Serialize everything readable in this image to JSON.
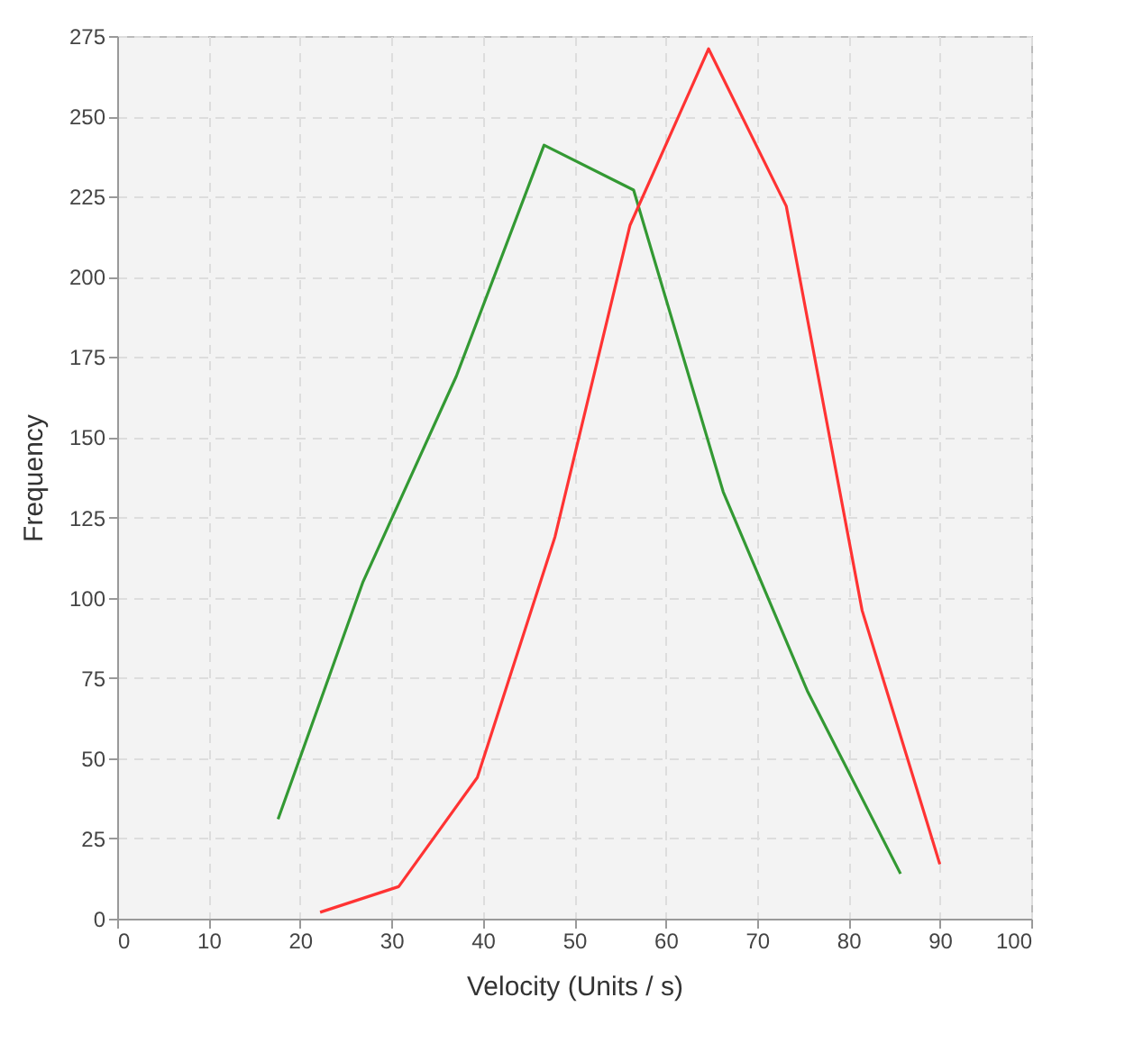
{
  "chart_data": {
    "type": "line",
    "xlabel": "Velocity (Units / s)",
    "ylabel": "Frequency",
    "xlim": [
      0,
      100
    ],
    "xticks": [
      0,
      10,
      20,
      30,
      40,
      50,
      60,
      70,
      80,
      90,
      100
    ],
    "ylim": [
      0,
      275
    ],
    "yticks": [
      0,
      25,
      50,
      75,
      100,
      125,
      150,
      175,
      200,
      225,
      250,
      275
    ],
    "grid": true,
    "legend": false,
    "series": [
      {
        "color": "#339933",
        "x": [
          17.6,
          26.9,
          37.1,
          46.7,
          56.5,
          66.3,
          75.5,
          85.7
        ],
        "values": [
          31,
          105,
          169,
          241,
          227,
          133,
          71,
          14
        ]
      },
      {
        "color": "#ff3333",
        "x": [
          22.2,
          30.8,
          39.4,
          47.9,
          56.1,
          64.7,
          73.2,
          81.5,
          90
        ],
        "values": [
          2,
          10,
          44,
          119,
          216,
          271,
          222,
          96,
          17
        ]
      }
    ]
  }
}
